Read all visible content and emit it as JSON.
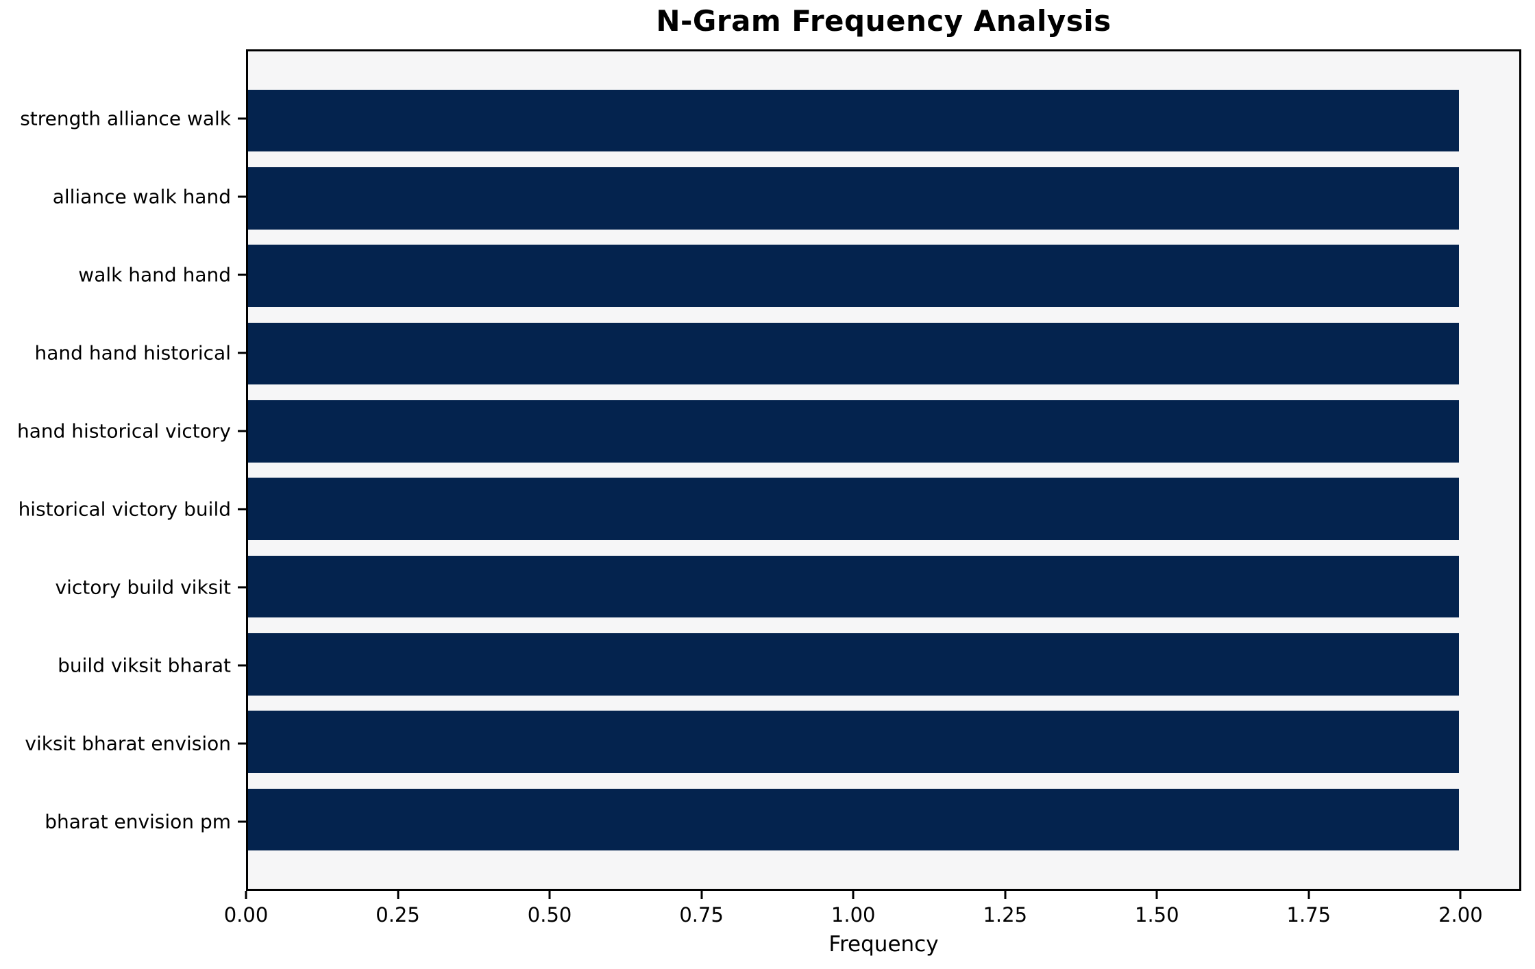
{
  "chart_data": {
    "type": "bar",
    "orientation": "horizontal",
    "title": "N-Gram Frequency Analysis",
    "xlabel": "Frequency",
    "ylabel": "",
    "categories": [
      "strength alliance walk",
      "alliance walk hand",
      "walk hand hand",
      "hand hand historical",
      "hand historical victory",
      "historical victory build",
      "victory build viksit",
      "build viksit bharat",
      "viksit bharat envision",
      "bharat envision pm"
    ],
    "values": [
      2,
      2,
      2,
      2,
      2,
      2,
      2,
      2,
      2,
      2
    ],
    "xlim": [
      0,
      2.1
    ],
    "xtick_labels": [
      "0.00",
      "0.25",
      "0.50",
      "0.75",
      "1.00",
      "1.25",
      "1.50",
      "1.75",
      "2.00"
    ],
    "xtick_values": [
      0,
      0.25,
      0.5,
      0.75,
      1.0,
      1.25,
      1.5,
      1.75,
      2.0
    ],
    "grid": false,
    "legend": null,
    "colors": {
      "bar": "#04234e",
      "plot_background": "#f6f6f7",
      "figure_background": "#ffffff",
      "spine": "#000000",
      "text": "#000000"
    }
  }
}
